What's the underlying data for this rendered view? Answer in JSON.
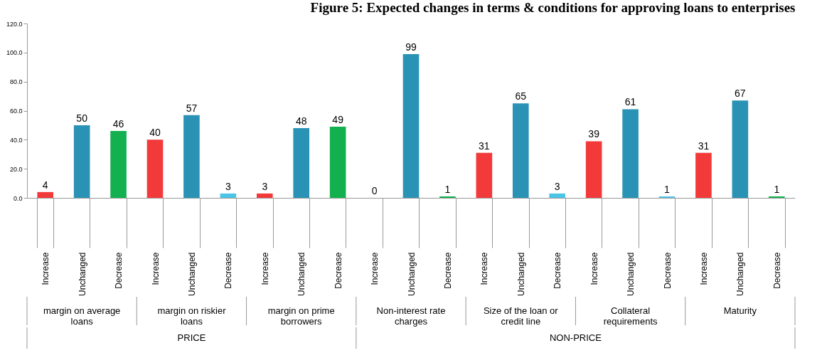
{
  "chart_data": {
    "type": "bar",
    "title": "Figure 5: Expected changes in terms & conditions for approving loans to enterprises",
    "categories": [
      "Increase",
      "Unchanged",
      "Decrease",
      "Increase",
      "Unchanged",
      "Decrease",
      "Increase",
      "Unchanged",
      "Decrease",
      "Increase",
      "Unchanged",
      "Decrease",
      "Increase",
      "Unchanged",
      "Decrease",
      "Increase",
      "Unchanged",
      "Decrease",
      "Increase",
      "Unchanged",
      "Decrease"
    ],
    "values": [
      4,
      50,
      46,
      40,
      57,
      3,
      3,
      48,
      49,
      0,
      99,
      1,
      31,
      65,
      3,
      39,
      61,
      1,
      31,
      67,
      1
    ],
    "colors": [
      "#f23a3a",
      "#2a93b5",
      "#12b04e",
      "#f23a3a",
      "#2a93b5",
      "#4cc4e6",
      "#f23a3a",
      "#2a93b5",
      "#12b04e",
      "#f23a3a",
      "#2a93b5",
      "#12b04e",
      "#f23a3a",
      "#2a93b5",
      "#4cc4e6",
      "#f23a3a",
      "#2a93b5",
      "#4cc4e6",
      "#f23a3a",
      "#2a93b5",
      "#12b04e"
    ],
    "ylim": [
      0,
      120
    ],
    "yticks": [
      {
        "value": 0,
        "label": "0.0"
      },
      {
        "value": 20,
        "label": "20.0"
      },
      {
        "value": 40,
        "label": "40.0"
      },
      {
        "value": 60,
        "label": "60.0"
      },
      {
        "value": 80,
        "label": "80.0"
      },
      {
        "value": 100,
        "label": "100.0"
      },
      {
        "value": 120,
        "label": "120.0"
      }
    ],
    "data_labels": true,
    "annotations": [
      "margin on average loans",
      "margin on riskier loans",
      "margin on prime borrowers",
      "Non-interest rate charges",
      "Size of the loan or credit line",
      "Collateral requirements",
      "Maturity",
      "PRICE",
      "NON-PRICE"
    ]
  }
}
